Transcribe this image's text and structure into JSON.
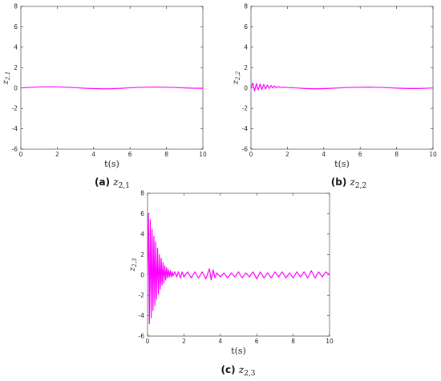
{
  "chart_data": [
    {
      "type": "line",
      "panel": "(a)",
      "caption_letter": "(a)",
      "caption_var": "z",
      "caption_sub": "2,1",
      "ylabel_var": "z",
      "ylabel_sub": "2,1",
      "xlabel": "t(s)",
      "xlim": [
        0,
        10
      ],
      "ylim": [
        -6,
        8
      ],
      "xticks": [
        0,
        2,
        4,
        6,
        8,
        10
      ],
      "yticks": [
        -6,
        -4,
        -2,
        0,
        2,
        4,
        6,
        8
      ],
      "grid": false,
      "color": "#ff00ff",
      "series": [
        {
          "x": [
            0,
            0.5,
            1,
            1.5,
            2,
            2.5,
            3,
            3.5,
            4,
            4.5,
            5,
            5.5,
            6,
            6.5,
            7,
            7.5,
            8,
            8.5,
            9,
            9.5,
            10
          ],
          "y": [
            0.0,
            0.06,
            0.1,
            0.12,
            0.11,
            0.08,
            0.03,
            -0.02,
            -0.06,
            -0.08,
            -0.07,
            -0.03,
            0.02,
            0.06,
            0.09,
            0.1,
            0.08,
            0.05,
            0.01,
            -0.02,
            -0.03
          ]
        }
      ]
    },
    {
      "type": "line",
      "panel": "(b)",
      "caption_letter": "(b)",
      "caption_var": "z",
      "caption_sub": "2,2",
      "ylabel_var": "z",
      "ylabel_sub": "2,2",
      "xlabel": "t(s)",
      "xlim": [
        0,
        10
      ],
      "ylim": [
        -6,
        8
      ],
      "xticks": [
        0,
        2,
        4,
        6,
        8,
        10
      ],
      "yticks": [
        -6,
        -4,
        -2,
        0,
        2,
        4,
        6,
        8
      ],
      "grid": false,
      "color": "#ff00ff",
      "series": [
        {
          "x": [
            0,
            0.1,
            0.2,
            0.3,
            0.4,
            0.5,
            0.6,
            0.7,
            0.8,
            0.9,
            1.0,
            1.1,
            1.2,
            1.3,
            1.4,
            1.5,
            1.6,
            1.8,
            2.0,
            2.5,
            3.0,
            3.5,
            4.0,
            4.5,
            5.0,
            5.5,
            6.0,
            6.5,
            7.0,
            7.5,
            8.0,
            8.5,
            9.0,
            9.5,
            10
          ],
          "y": [
            0.0,
            0.5,
            -0.3,
            0.45,
            -0.2,
            0.4,
            -0.15,
            0.35,
            -0.1,
            0.3,
            -0.05,
            0.25,
            0.0,
            0.2,
            0.02,
            0.15,
            0.05,
            0.08,
            0.05,
            0.0,
            -0.05,
            -0.08,
            -0.06,
            -0.02,
            0.02,
            0.06,
            0.08,
            0.09,
            0.07,
            0.03,
            -0.01,
            -0.04,
            -0.05,
            -0.03,
            0.0
          ]
        }
      ]
    },
    {
      "type": "line",
      "panel": "(c)",
      "caption_letter": "(c)",
      "caption_var": "z",
      "caption_sub": "2,3",
      "ylabel_var": "z",
      "ylabel_sub": "2,3",
      "xlabel": "t(s)",
      "xlim": [
        0,
        10
      ],
      "ylim": [
        -6,
        8
      ],
      "xticks": [
        0,
        2,
        4,
        6,
        8,
        10
      ],
      "yticks": [
        -6,
        -4,
        -2,
        0,
        2,
        4,
        6,
        8
      ],
      "grid": false,
      "color": "#ff00ff",
      "series": [
        {
          "x": [
            0,
            0.05,
            0.1,
            0.15,
            0.2,
            0.25,
            0.3,
            0.35,
            0.4,
            0.45,
            0.5,
            0.55,
            0.6,
            0.65,
            0.7,
            0.75,
            0.8,
            0.85,
            0.9,
            0.95,
            1.0,
            1.05,
            1.1,
            1.15,
            1.2,
            1.25,
            1.3,
            1.35,
            1.4,
            1.5,
            1.6,
            1.7,
            1.8,
            1.9,
            2.0,
            2.2,
            2.4,
            2.6,
            2.8,
            3.0,
            3.2,
            3.4,
            3.5,
            3.6,
            3.7,
            3.8,
            4.0,
            4.2,
            4.4,
            4.6,
            4.8,
            5.0,
            5.2,
            5.4,
            5.6,
            5.8,
            6.0,
            6.2,
            6.4,
            6.6,
            6.8,
            7.0,
            7.2,
            7.4,
            7.6,
            7.8,
            8.0,
            8.2,
            8.4,
            8.6,
            8.8,
            9.0,
            9.2,
            9.4,
            9.6,
            9.8,
            10
          ],
          "y": [
            0.0,
            6.0,
            -4.8,
            5.4,
            -4.2,
            4.5,
            -3.5,
            3.8,
            -3.0,
            3.2,
            -2.4,
            2.6,
            -1.9,
            2.0,
            -1.4,
            1.6,
            -1.0,
            1.2,
            -0.8,
            0.9,
            -0.5,
            0.7,
            -0.3,
            0.5,
            -0.2,
            0.4,
            -0.2,
            0.3,
            -0.1,
            0.3,
            -0.2,
            0.3,
            -0.3,
            0.3,
            -0.2,
            0.3,
            -0.3,
            0.3,
            -0.3,
            0.3,
            -0.4,
            0.6,
            -0.5,
            0.5,
            -0.3,
            0.2,
            -0.2,
            0.2,
            -0.3,
            0.2,
            -0.2,
            0.3,
            -0.3,
            0.2,
            -0.2,
            0.3,
            -0.4,
            0.3,
            -0.3,
            0.2,
            -0.3,
            0.3,
            -0.2,
            0.3,
            -0.3,
            0.2,
            -0.3,
            0.3,
            -0.2,
            0.3,
            -0.3,
            0.4,
            -0.3,
            0.3,
            -0.2,
            0.3,
            0.0
          ]
        }
      ]
    }
  ]
}
